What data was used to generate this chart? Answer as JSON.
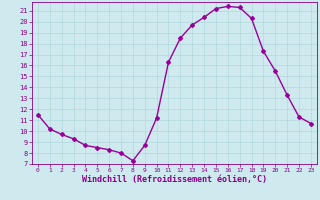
{
  "x": [
    0,
    1,
    2,
    3,
    4,
    5,
    6,
    7,
    8,
    9,
    10,
    11,
    12,
    13,
    14,
    15,
    16,
    17,
    18,
    19,
    20,
    21,
    22,
    23
  ],
  "y": [
    11.5,
    10.2,
    9.7,
    9.3,
    8.7,
    8.5,
    8.3,
    8.0,
    7.3,
    8.7,
    11.2,
    16.3,
    18.5,
    19.7,
    20.4,
    21.2,
    21.4,
    21.3,
    20.3,
    17.3,
    15.5,
    13.3,
    11.3,
    10.7
  ],
  "line_color": "#990099",
  "marker": "D",
  "markersize": 2.0,
  "linewidth": 1.0,
  "xlabel": "Windchill (Refroidissement éolien,°C)",
  "xlabel_fontsize": 6,
  "xlim": [
    -0.5,
    23.5
  ],
  "ylim": [
    7,
    21.8
  ],
  "yticks": [
    7,
    8,
    9,
    10,
    11,
    12,
    13,
    14,
    15,
    16,
    17,
    18,
    19,
    20,
    21
  ],
  "xticks": [
    0,
    1,
    2,
    3,
    4,
    5,
    6,
    7,
    8,
    9,
    10,
    11,
    12,
    13,
    14,
    15,
    16,
    17,
    18,
    19,
    20,
    21,
    22,
    23
  ],
  "bg_color": "#ceeaee",
  "grid_color": "#b0d8dc",
  "tick_fontsize": 5.0,
  "xtick_fontsize": 4.5,
  "tick_color": "#880088"
}
